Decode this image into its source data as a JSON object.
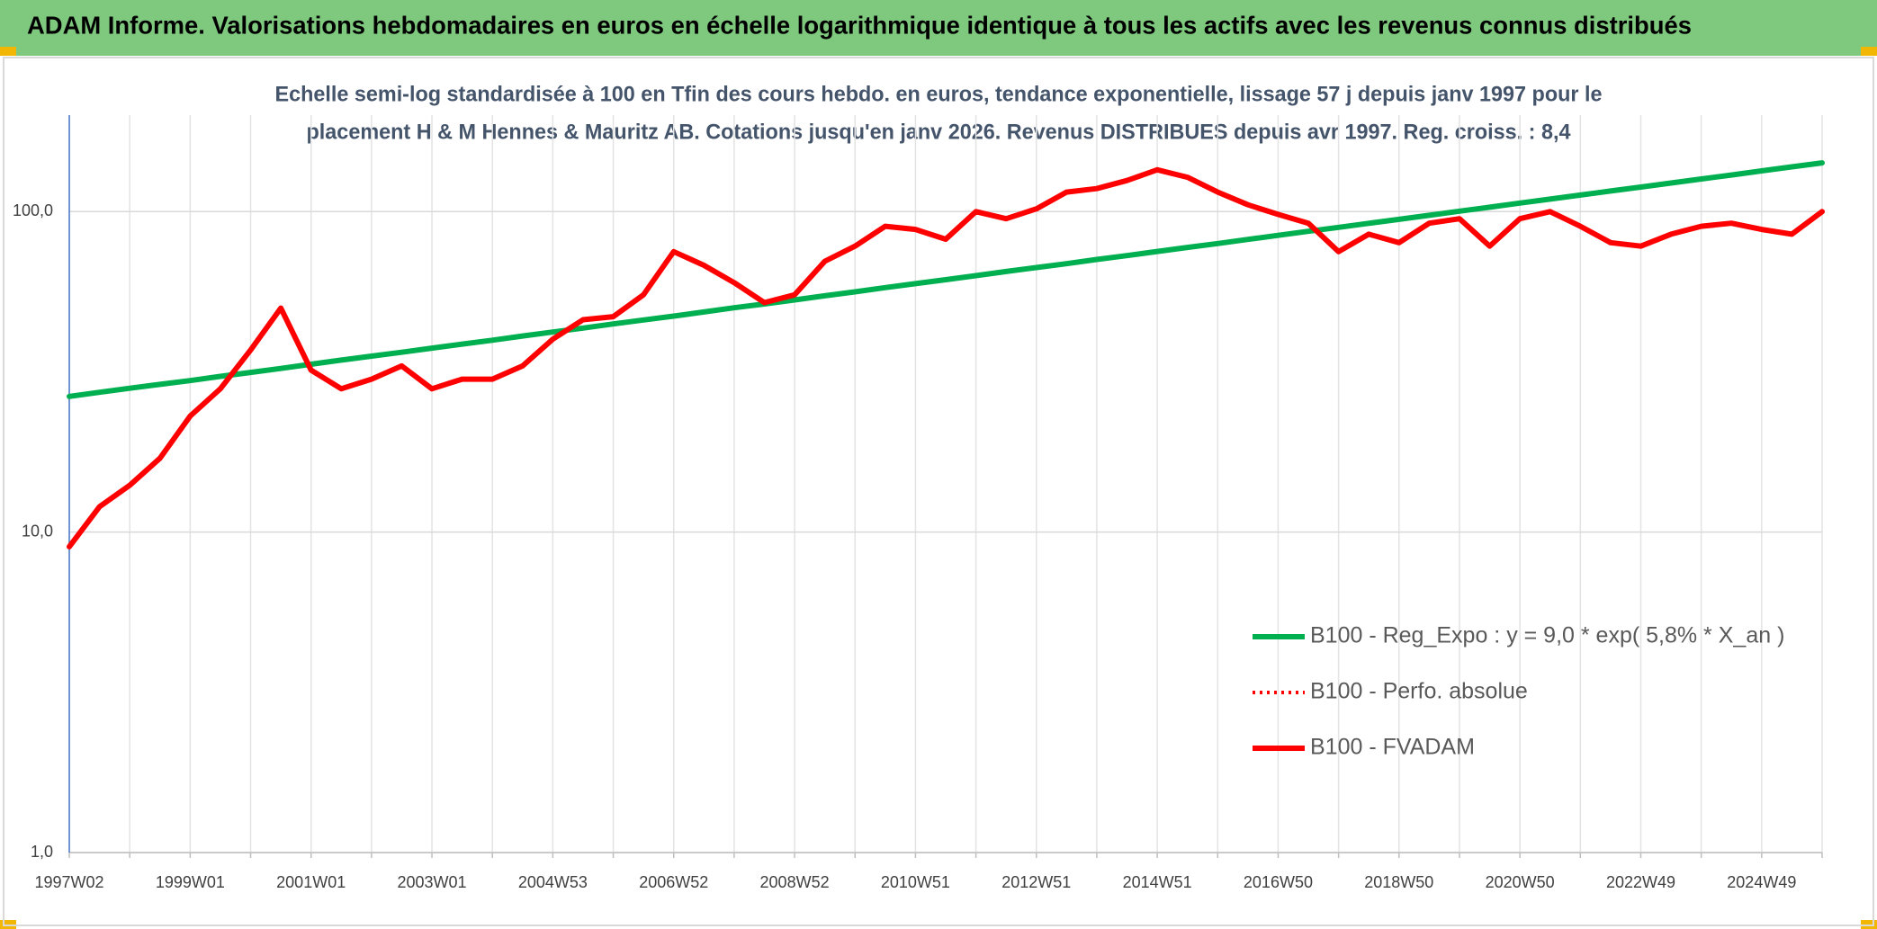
{
  "chart_data": {
    "type": "line",
    "title": "ADAM Informe. Valorisations hebdomadaires en euros en échelle logarithmique identique à tous les actifs avec les revenus connus distribués",
    "subtitle": [
      "Echelle semi-log standardisée à 100 en Tfin des cours hebdo. en euros, tendance exponentielle, lissage 57 j depuis janv 1997 pour le",
      "placement H & M Hennes & Mauritz AB. Cotations jusqu'en janv 2026. Revenus DISTRIBUES depuis avr 1997. Reg. croiss. : 8,4"
    ],
    "categories": [
      "1997W02",
      null,
      null,
      null,
      "1999W01",
      null,
      null,
      null,
      "2001W01",
      null,
      null,
      null,
      "2003W01",
      null,
      null,
      null,
      "2004W53",
      null,
      null,
      null,
      "2006W52",
      null,
      null,
      null,
      "2008W52",
      null,
      null,
      null,
      "2010W51",
      null,
      null,
      null,
      "2012W51",
      null,
      null,
      null,
      "2014W51",
      null,
      null,
      null,
      "2016W50",
      null,
      null,
      null,
      "2018W50",
      null,
      null,
      null,
      "2020W50",
      null,
      null,
      null,
      "2022W49",
      null,
      null,
      null,
      "2024W49",
      null,
      null
    ],
    "series": [
      {
        "name": "B100 - Reg_Expo : y = 9,0 * exp( 5,8% *  X_an )",
        "color": "#00b050",
        "style": "solid",
        "values": [
          26.5,
          27.3,
          28.1,
          28.9,
          29.7,
          30.6,
          31.5,
          32.4,
          33.4,
          34.4,
          35.4,
          36.4,
          37.5,
          38.6,
          39.7,
          40.9,
          42.1,
          43.3,
          44.6,
          45.9,
          47.2,
          48.6,
          50.1,
          51.5,
          53.0,
          54.6,
          56.2,
          57.9,
          59.6,
          61.3,
          63.1,
          65.0,
          66.9,
          68.8,
          70.9,
          72.9,
          75.1,
          77.3,
          79.5,
          81.9,
          84.3,
          86.8,
          89.3,
          91.9,
          94.6,
          97.4,
          100.3,
          103.2,
          106.3,
          109.4,
          112.6,
          115.9,
          119.3,
          122.8,
          126.4,
          130.1,
          134.0,
          137.9,
          141.9
        ]
      },
      {
        "name": "B100 - Perfo. absolue",
        "color": "#ff0000",
        "style": "dotted",
        "values": [
          9,
          12,
          14,
          17,
          23,
          28,
          37,
          50,
          32,
          28,
          30,
          33,
          28,
          30,
          30,
          33,
          40,
          46,
          47,
          55,
          75,
          68,
          60,
          52,
          55,
          70,
          78,
          90,
          88,
          82,
          100,
          95,
          102,
          115,
          118,
          125,
          135,
          128,
          115,
          105,
          98,
          92,
          75,
          85,
          80,
          92,
          95,
          78,
          95,
          100,
          90,
          80,
          78,
          85,
          90,
          92,
          88,
          85,
          100
        ]
      },
      {
        "name": "B100 - FVADAM",
        "color": "#ff0000",
        "style": "solid",
        "values": [
          9,
          12,
          14,
          17,
          23,
          28,
          37,
          50,
          32,
          28,
          30,
          33,
          28,
          30,
          30,
          33,
          40,
          46,
          47,
          55,
          75,
          68,
          60,
          52,
          55,
          70,
          78,
          90,
          88,
          82,
          100,
          95,
          102,
          115,
          118,
          125,
          135,
          128,
          115,
          105,
          98,
          92,
          75,
          85,
          80,
          92,
          95,
          78,
          95,
          100,
          90,
          80,
          78,
          85,
          90,
          92,
          88,
          85,
          100
        ]
      }
    ],
    "ylim": [
      1,
      200
    ],
    "yticks": [
      {
        "value": 1,
        "label": "1,0"
      },
      {
        "value": 10,
        "label": "10,0"
      },
      {
        "value": 100,
        "label": "100,0"
      }
    ],
    "log_scale": true,
    "grid": true,
    "legend": "lower right"
  }
}
